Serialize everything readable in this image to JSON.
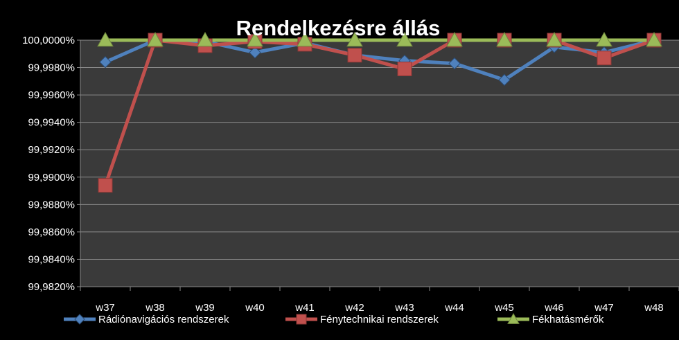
{
  "chart_data": {
    "type": "line",
    "title": "Rendelkezésre állás",
    "xlabel": "",
    "ylabel": "",
    "categories": [
      "w37",
      "w38",
      "w39",
      "w40",
      "w41",
      "w42",
      "w43",
      "w44",
      "w45",
      "w46",
      "w47",
      "w48"
    ],
    "ylim": [
      99.982,
      100.0
    ],
    "ytick_step": 0.002,
    "ytick_labels": [
      "99,9820%",
      "99,9840%",
      "99,9860%",
      "99,9880%",
      "99,9900%",
      "99,9920%",
      "99,9940%",
      "99,9960%",
      "99,9980%",
      "100,0000%"
    ],
    "grid": true,
    "legend_position": "bottom",
    "plot_background": "#3a3a3a",
    "series": [
      {
        "name": "Rádiónavigációs rendszerek",
        "color": "#4f81bd",
        "marker": "diamond",
        "values": [
          99.9984,
          100.0,
          99.9999,
          99.9991,
          99.9998,
          99.9989,
          99.9985,
          99.9983,
          99.9971,
          99.9995,
          99.9991,
          100.0
        ]
      },
      {
        "name": "Fénytechnikai rendszerek",
        "color": "#c0504d",
        "marker": "square",
        "values": [
          99.9894,
          100.0,
          99.9996,
          99.9999,
          99.9997,
          99.9989,
          99.9979,
          100.0,
          100.0,
          100.0,
          99.9987,
          100.0
        ]
      },
      {
        "name": "Fékhatásmérők",
        "color": "#9bbb59",
        "marker": "triangle",
        "values": [
          100.0,
          100.0,
          100.0,
          100.0,
          100.0,
          100.0,
          100.0,
          100.0,
          100.0,
          100.0,
          100.0,
          100.0
        ]
      }
    ]
  }
}
